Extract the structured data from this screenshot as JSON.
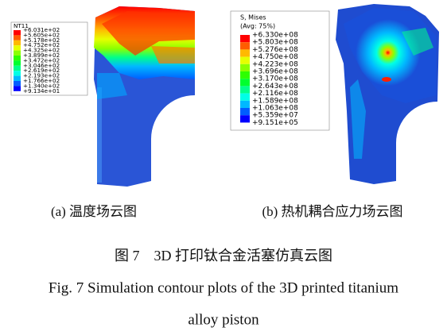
{
  "panel_a": {
    "legend": {
      "title": "NT11",
      "labels": [
        "+6.031e+02",
        "+5.605e+02",
        "+5.178e+02",
        "+4.752e+02",
        "+4.325e+02",
        "+3.899e+02",
        "+3.472e+02",
        "+3.046e+02",
        "+2.619e+02",
        "+2.193e+02",
        "+1.766e+02",
        "+1.340e+02",
        "+9.134e+01"
      ]
    },
    "caption": "(a)  温度场云图"
  },
  "panel_b": {
    "legend": {
      "title": "S, Mises",
      "subtitle": "(Avg: 75%)",
      "labels": [
        "+6.330e+08",
        "+5.803e+08",
        "+5.276e+08",
        "+4.750e+08",
        "+4.223e+08",
        "+3.696e+08",
        "+3.170e+08",
        "+2.643e+08",
        "+2.116e+08",
        "+1.589e+08",
        "+1.063e+08",
        "+5.359e+07",
        "+9.151e+05"
      ]
    },
    "caption": "(b)  热机耦合应力场云图"
  },
  "figure_caption": {
    "chinese": "图 7　3D 打印钛合金活塞仿真云图",
    "english": [
      "Fig. 7 Simulation contour plots of the 3D printed titanium",
      "alloy piston"
    ]
  }
}
